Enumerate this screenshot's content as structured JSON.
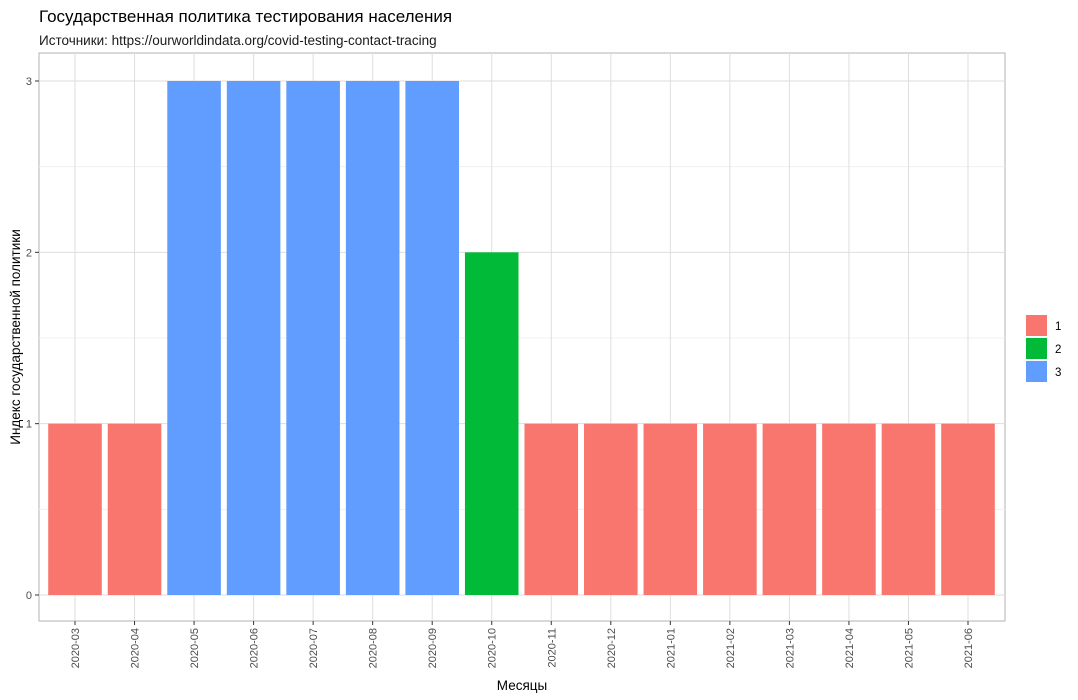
{
  "title": "Государственная политика тестирования населения",
  "subtitle": "Источники: https://ourworldindata.org/covid-testing-contact-tracing",
  "chart_data": {
    "type": "bar",
    "title": "Государственная политика тестирования населения",
    "subtitle": "Источники: https://ourworldindata.org/covid-testing-contact-tracing",
    "xlabel": "Месяцы",
    "ylabel": "Индекс государственной политики",
    "categories": [
      "2020-03",
      "2020-04",
      "2020-05",
      "2020-06",
      "2020-07",
      "2020-08",
      "2020-09",
      "2020-10",
      "2020-11",
      "2020-12",
      "2021-01",
      "2021-02",
      "2021-03",
      "2021-04",
      "2021-05",
      "2021-06"
    ],
    "values": [
      1,
      1,
      3,
      3,
      3,
      3,
      3,
      2,
      1,
      1,
      1,
      1,
      1,
      1,
      1,
      1
    ],
    "fill_group": [
      "1",
      "1",
      "3",
      "3",
      "3",
      "3",
      "3",
      "2",
      "1",
      "1",
      "1",
      "1",
      "1",
      "1",
      "1",
      "1"
    ],
    "ylim": [
      0,
      3
    ],
    "yticks": [
      0,
      1,
      2,
      3
    ],
    "grid": true,
    "legend": {
      "placement": "right",
      "entries": [
        {
          "label": "1",
          "color": "#F8766D"
        },
        {
          "label": "2",
          "color": "#00BA38"
        },
        {
          "label": "3",
          "color": "#619CFF"
        }
      ]
    }
  }
}
